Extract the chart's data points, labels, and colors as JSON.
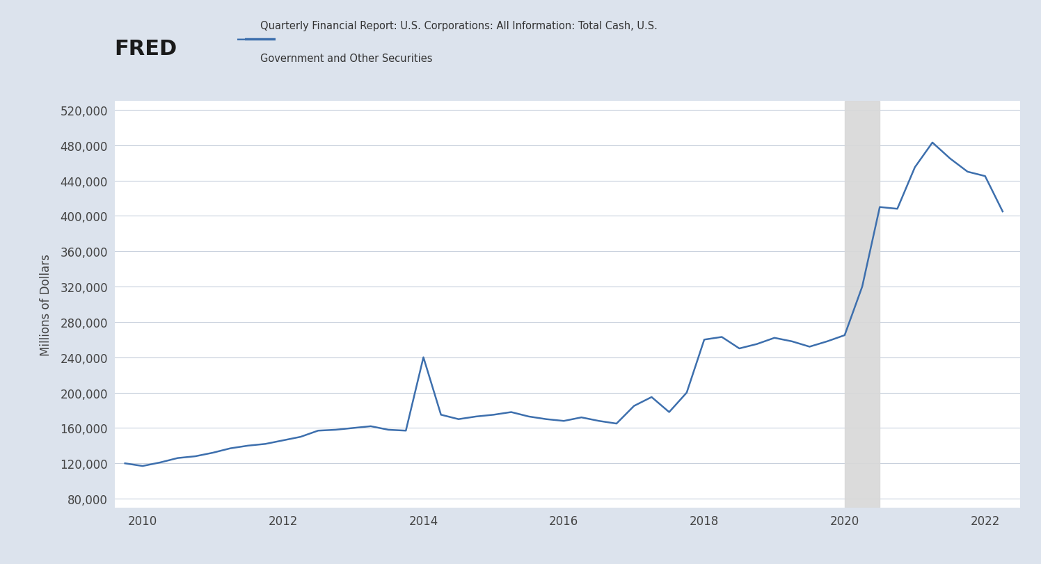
{
  "title_line1": "Quarterly Financial Report: U.S. Corporations: All Information: Total Cash, U.S.",
  "title_line2": "Government and Other Securities",
  "ylabel": "Millions of Dollars",
  "line_color": "#3d6fad",
  "line_width": 1.8,
  "background_outer": "#dce3ed",
  "background_inner": "#ffffff",
  "grid_color": "#c8d0dc",
  "shaded_region_color": "#d8d8d8",
  "shaded_region_alpha": 0.9,
  "shaded_x_start": 2020.0,
  "shaded_x_end": 2020.5,
  "ylim": [
    70000,
    530000
  ],
  "yticks": [
    80000,
    120000,
    160000,
    200000,
    240000,
    280000,
    320000,
    360000,
    400000,
    440000,
    480000,
    520000
  ],
  "xticks": [
    2010,
    2012,
    2014,
    2016,
    2018,
    2020,
    2022
  ],
  "dates": [
    2009.75,
    2010.0,
    2010.25,
    2010.5,
    2010.75,
    2011.0,
    2011.25,
    2011.5,
    2011.75,
    2012.0,
    2012.25,
    2012.5,
    2012.75,
    2013.0,
    2013.25,
    2013.5,
    2013.75,
    2014.0,
    2014.25,
    2014.5,
    2014.75,
    2015.0,
    2015.25,
    2015.5,
    2015.75,
    2016.0,
    2016.25,
    2016.5,
    2016.75,
    2017.0,
    2017.25,
    2017.5,
    2017.75,
    2018.0,
    2018.25,
    2018.5,
    2018.75,
    2019.0,
    2019.25,
    2019.5,
    2019.75,
    2020.0,
    2020.25,
    2020.5,
    2020.75,
    2021.0,
    2021.25,
    2021.5,
    2021.75,
    2022.0,
    2022.25
  ],
  "values": [
    120000,
    117000,
    121000,
    126000,
    128000,
    132000,
    137000,
    140000,
    142000,
    146000,
    150000,
    157000,
    158000,
    160000,
    162000,
    158000,
    157000,
    240000,
    175000,
    170000,
    173000,
    175000,
    178000,
    173000,
    170000,
    168000,
    172000,
    168000,
    165000,
    185000,
    195000,
    178000,
    200000,
    260000,
    263000,
    250000,
    255000,
    262000,
    258000,
    252000,
    258000,
    265000,
    320000,
    410000,
    408000,
    455000,
    483000,
    465000,
    450000,
    445000,
    405000
  ],
  "fred_text": "FRED",
  "fred_color": "#1a1a1a",
  "legend_label": "Quarterly Financial Report: U.S. Corporations: All Information: Total Cash, U.S.\nGovernment and Other Securities"
}
